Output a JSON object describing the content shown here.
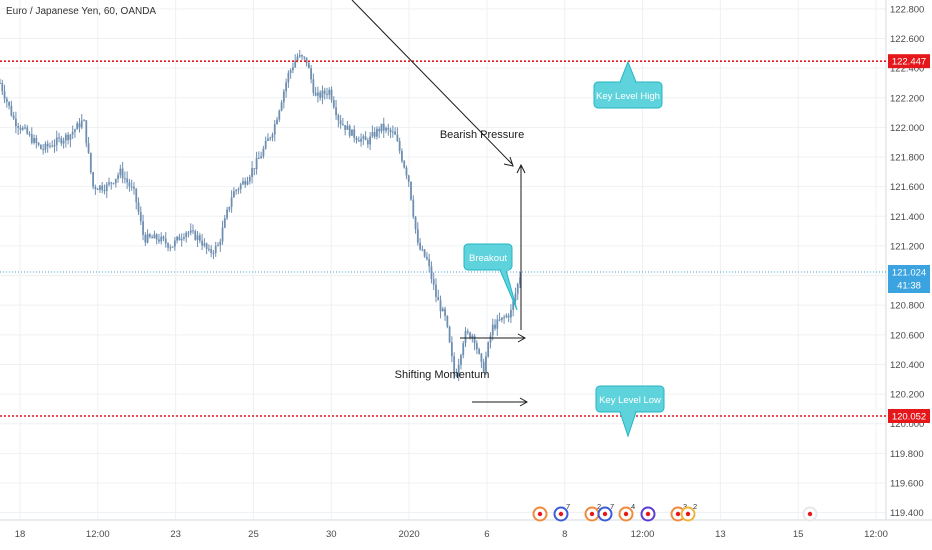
{
  "symbol_title": "Euro / Japanese Yen, 60, OANDA",
  "colors": {
    "candle": "#6f8fb1",
    "grid": "#eef1f4",
    "level_line": "#e5171b",
    "level_tag": "#e5171b",
    "price_line": "#4aa3d8",
    "price_tag": "#3aa3e0",
    "callout_fill": "#5fd3dc",
    "callout_border": "#23b6c4",
    "axis_text": "#4a4a4a",
    "drawing": "#1a1a1a"
  },
  "chart_data": {
    "type": "candlestick",
    "title": "Euro / Japanese Yen, 60, OANDA",
    "y_ticks": [
      119.4,
      119.6,
      119.8,
      120.0,
      120.2,
      120.4,
      120.6,
      120.8,
      121.0,
      121.2,
      121.4,
      121.6,
      121.8,
      122.0,
      122.2,
      122.4,
      122.6,
      122.8
    ],
    "y_tick_labels": [
      "119.400",
      "119.600",
      "119.800",
      "120.000",
      "120.200",
      "120.400",
      "120.600",
      "120.800",
      "121.000",
      "121.200",
      "121.400",
      "121.600",
      "121.800",
      "122.000",
      "122.200",
      "122.400",
      "122.600",
      "122.800"
    ],
    "ylim": [
      119.35,
      122.86
    ],
    "x_tick_labels": [
      "18",
      "12:00",
      "23",
      "25",
      "30",
      "2020",
      "6",
      "8",
      "12:00",
      "13",
      "15",
      "12:00"
    ],
    "price_path": [
      {
        "t": 0,
        "p": 122.3
      },
      {
        "t": 3,
        "p": 122.05
      },
      {
        "t": 6,
        "p": 121.95
      },
      {
        "t": 9,
        "p": 121.85
      },
      {
        "t": 12,
        "p": 121.9
      },
      {
        "t": 15,
        "p": 121.95
      },
      {
        "t": 18,
        "p": 122.05
      },
      {
        "t": 20,
        "p": 121.6
      },
      {
        "t": 23,
        "p": 121.6
      },
      {
        "t": 26,
        "p": 121.7
      },
      {
        "t": 29,
        "p": 121.55
      },
      {
        "t": 31,
        "p": 121.25
      },
      {
        "t": 34,
        "p": 121.25
      },
      {
        "t": 37,
        "p": 121.2
      },
      {
        "t": 40,
        "p": 121.3
      },
      {
        "t": 43,
        "p": 121.25
      },
      {
        "t": 45,
        "p": 121.15
      },
      {
        "t": 47,
        "p": 121.2
      },
      {
        "t": 50,
        "p": 121.55
      },
      {
        "t": 53,
        "p": 121.65
      },
      {
        "t": 56,
        "p": 121.8
      },
      {
        "t": 59,
        "p": 122.0
      },
      {
        "t": 62,
        "p": 122.35
      },
      {
        "t": 64,
        "p": 122.48
      },
      {
        "t": 66,
        "p": 122.45
      },
      {
        "t": 68,
        "p": 122.2
      },
      {
        "t": 71,
        "p": 122.25
      },
      {
        "t": 73,
        "p": 122.05
      },
      {
        "t": 76,
        "p": 121.95
      },
      {
        "t": 79,
        "p": 121.9
      },
      {
        "t": 82,
        "p": 122.0
      },
      {
        "t": 85,
        "p": 121.95
      },
      {
        "t": 88,
        "p": 121.65
      },
      {
        "t": 90,
        "p": 121.2
      },
      {
        "t": 92,
        "p": 121.1
      },
      {
        "t": 94,
        "p": 120.85
      },
      {
        "t": 96,
        "p": 120.7
      },
      {
        "t": 98,
        "p": 120.3
      },
      {
        "t": 100,
        "p": 120.6
      },
      {
        "t": 102,
        "p": 120.6
      },
      {
        "t": 104,
        "p": 120.35
      },
      {
        "t": 106,
        "p": 120.65
      },
      {
        "t": 108,
        "p": 120.7
      },
      {
        "t": 110,
        "p": 120.75
      },
      {
        "t": 112,
        "p": 121.0
      }
    ],
    "levels": [
      {
        "value": 122.447,
        "label": "122.447"
      },
      {
        "value": 120.052,
        "label": "120.052"
      }
    ],
    "current_price": {
      "value": 121.024,
      "label": "121.024",
      "countdown": "41:38"
    },
    "annotations": {
      "bearish": "Bearish Pressure",
      "shifting": "Shifting Momentum",
      "breakout": "Breakout",
      "key_high": "Key Level High",
      "key_low": "Key Level Low"
    }
  },
  "events": [
    {
      "badge": ""
    },
    {
      "badge": "7"
    },
    {
      "badge": "2"
    },
    {
      "badge": "7"
    },
    {
      "badge": "4"
    },
    {
      "badge": ""
    },
    {
      "badge": "3"
    },
    {
      "badge": "2"
    },
    {
      "badge": ""
    }
  ]
}
